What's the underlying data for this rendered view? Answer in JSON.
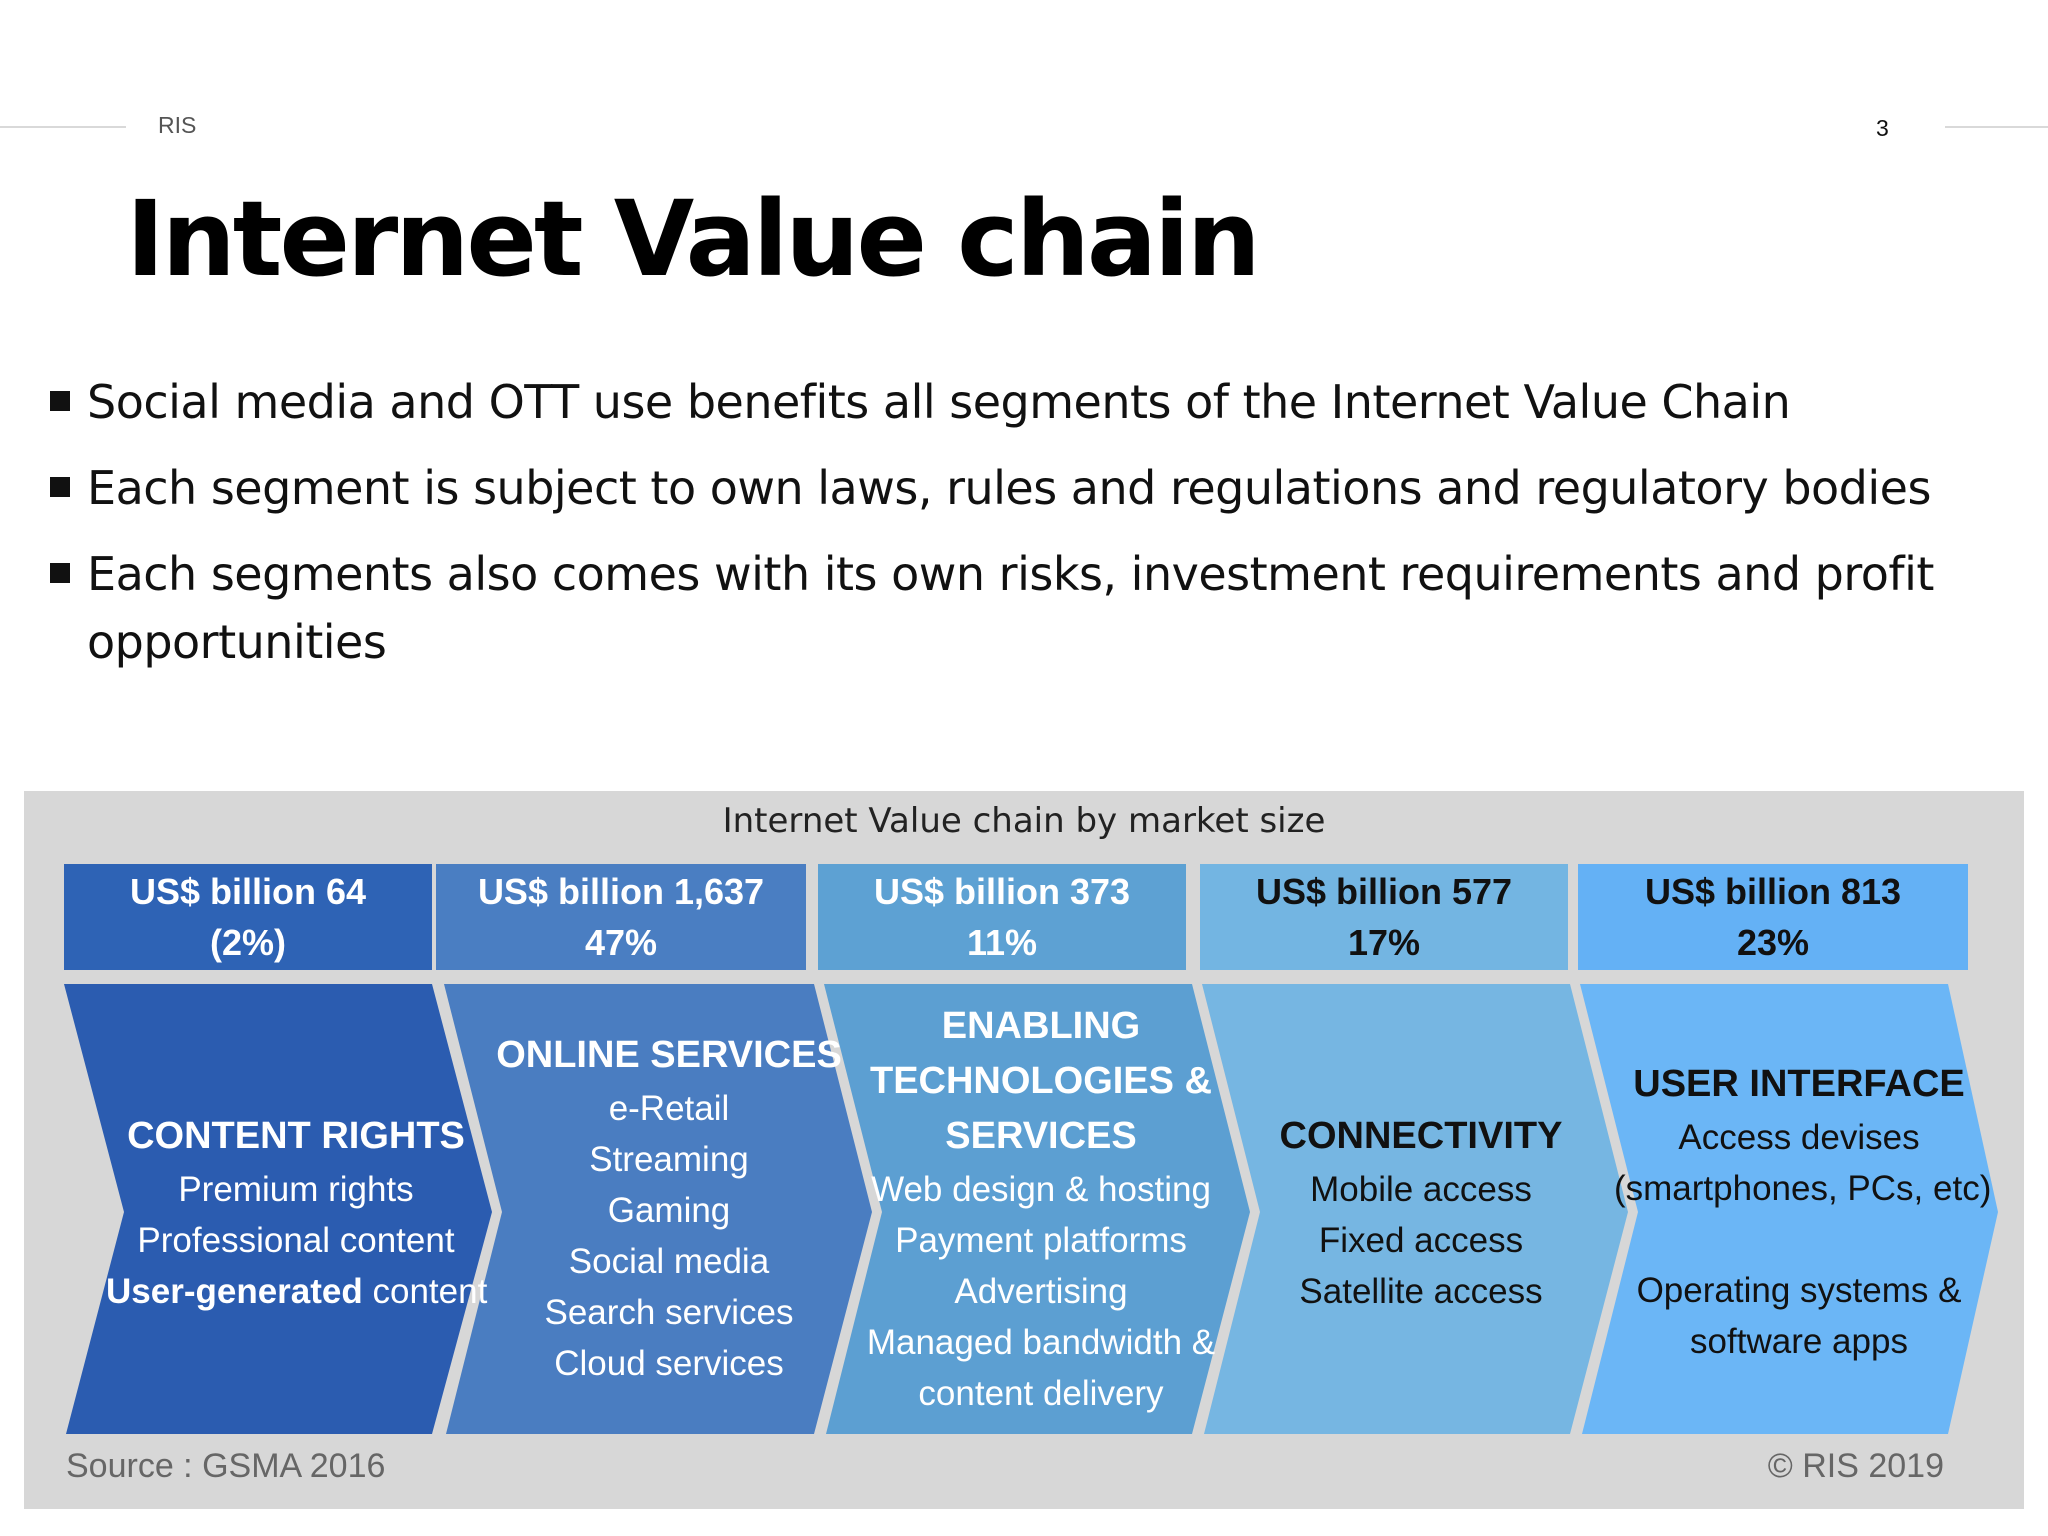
{
  "header": {
    "left": "RIS",
    "page_number": "3"
  },
  "title": "Internet Value chain",
  "bullets": [
    "Social media and OTT use benefits all segments of the Internet Value Chain",
    "Each segment is subject to own laws, rules and regulations and regulatory bodies",
    "Each segments also comes with its own risks, investment requirements and profit opportunities"
  ],
  "figure": {
    "title": "Internet Value chain by market size",
    "source": "Source : GSMA 2016",
    "copyright": "© RIS 2019",
    "segments": [
      {
        "value_line1": "US$ billion 64",
        "value_line2": "(2%)",
        "heading": [
          "CONTENT RIGHTS"
        ],
        "items": [
          "Premium rights",
          "Professional content"
        ],
        "extra_bold": "User-generated",
        "extra_rest": " content",
        "box_color": "#2e63b5",
        "chev_color": "#2b5cb0",
        "text_color": "#ffffff"
      },
      {
        "value_line1": "US$ billion 1,637",
        "value_line2": "47%",
        "heading": [
          "ONLINE SERVICES"
        ],
        "items": [
          "e-Retail",
          "Streaming",
          "Gaming",
          "Social media",
          "Search services",
          "Cloud services"
        ],
        "box_color": "#4a7ec2",
        "chev_color": "#4a7dc1",
        "text_color": "#ffffff"
      },
      {
        "value_line1": "US$ billion 373",
        "value_line2": "11%",
        "heading": [
          "ENABLING",
          "TECHNOLOGIES &",
          "SERVICES"
        ],
        "items": [
          "Web design & hosting",
          "Payment platforms",
          "Advertising",
          "Managed bandwidth &",
          "content delivery"
        ],
        "box_color": "#5da1d3",
        "chev_color": "#5c9fd2",
        "text_color": "#ffffff"
      },
      {
        "value_line1": "US$ billion 577",
        "value_line2": "17%",
        "heading": [
          "CONNECTIVITY"
        ],
        "items": [
          "Mobile access",
          "Fixed access",
          "Satellite  access"
        ],
        "box_color": "#73b5e2",
        "chev_color": "#76b6e2",
        "text_color": "#111111"
      },
      {
        "value_line1": "US$ billion 813",
        "value_line2": "23%",
        "heading": [
          "USER INTERFACE"
        ],
        "items": [
          "Access devises",
          "(smartphones, PCs, etc)",
          "",
          "Operating systems &",
          "software apps"
        ],
        "box_color": "#64b1f5",
        "chev_color": "#6bb6f6",
        "text_color": "#111111"
      }
    ]
  }
}
